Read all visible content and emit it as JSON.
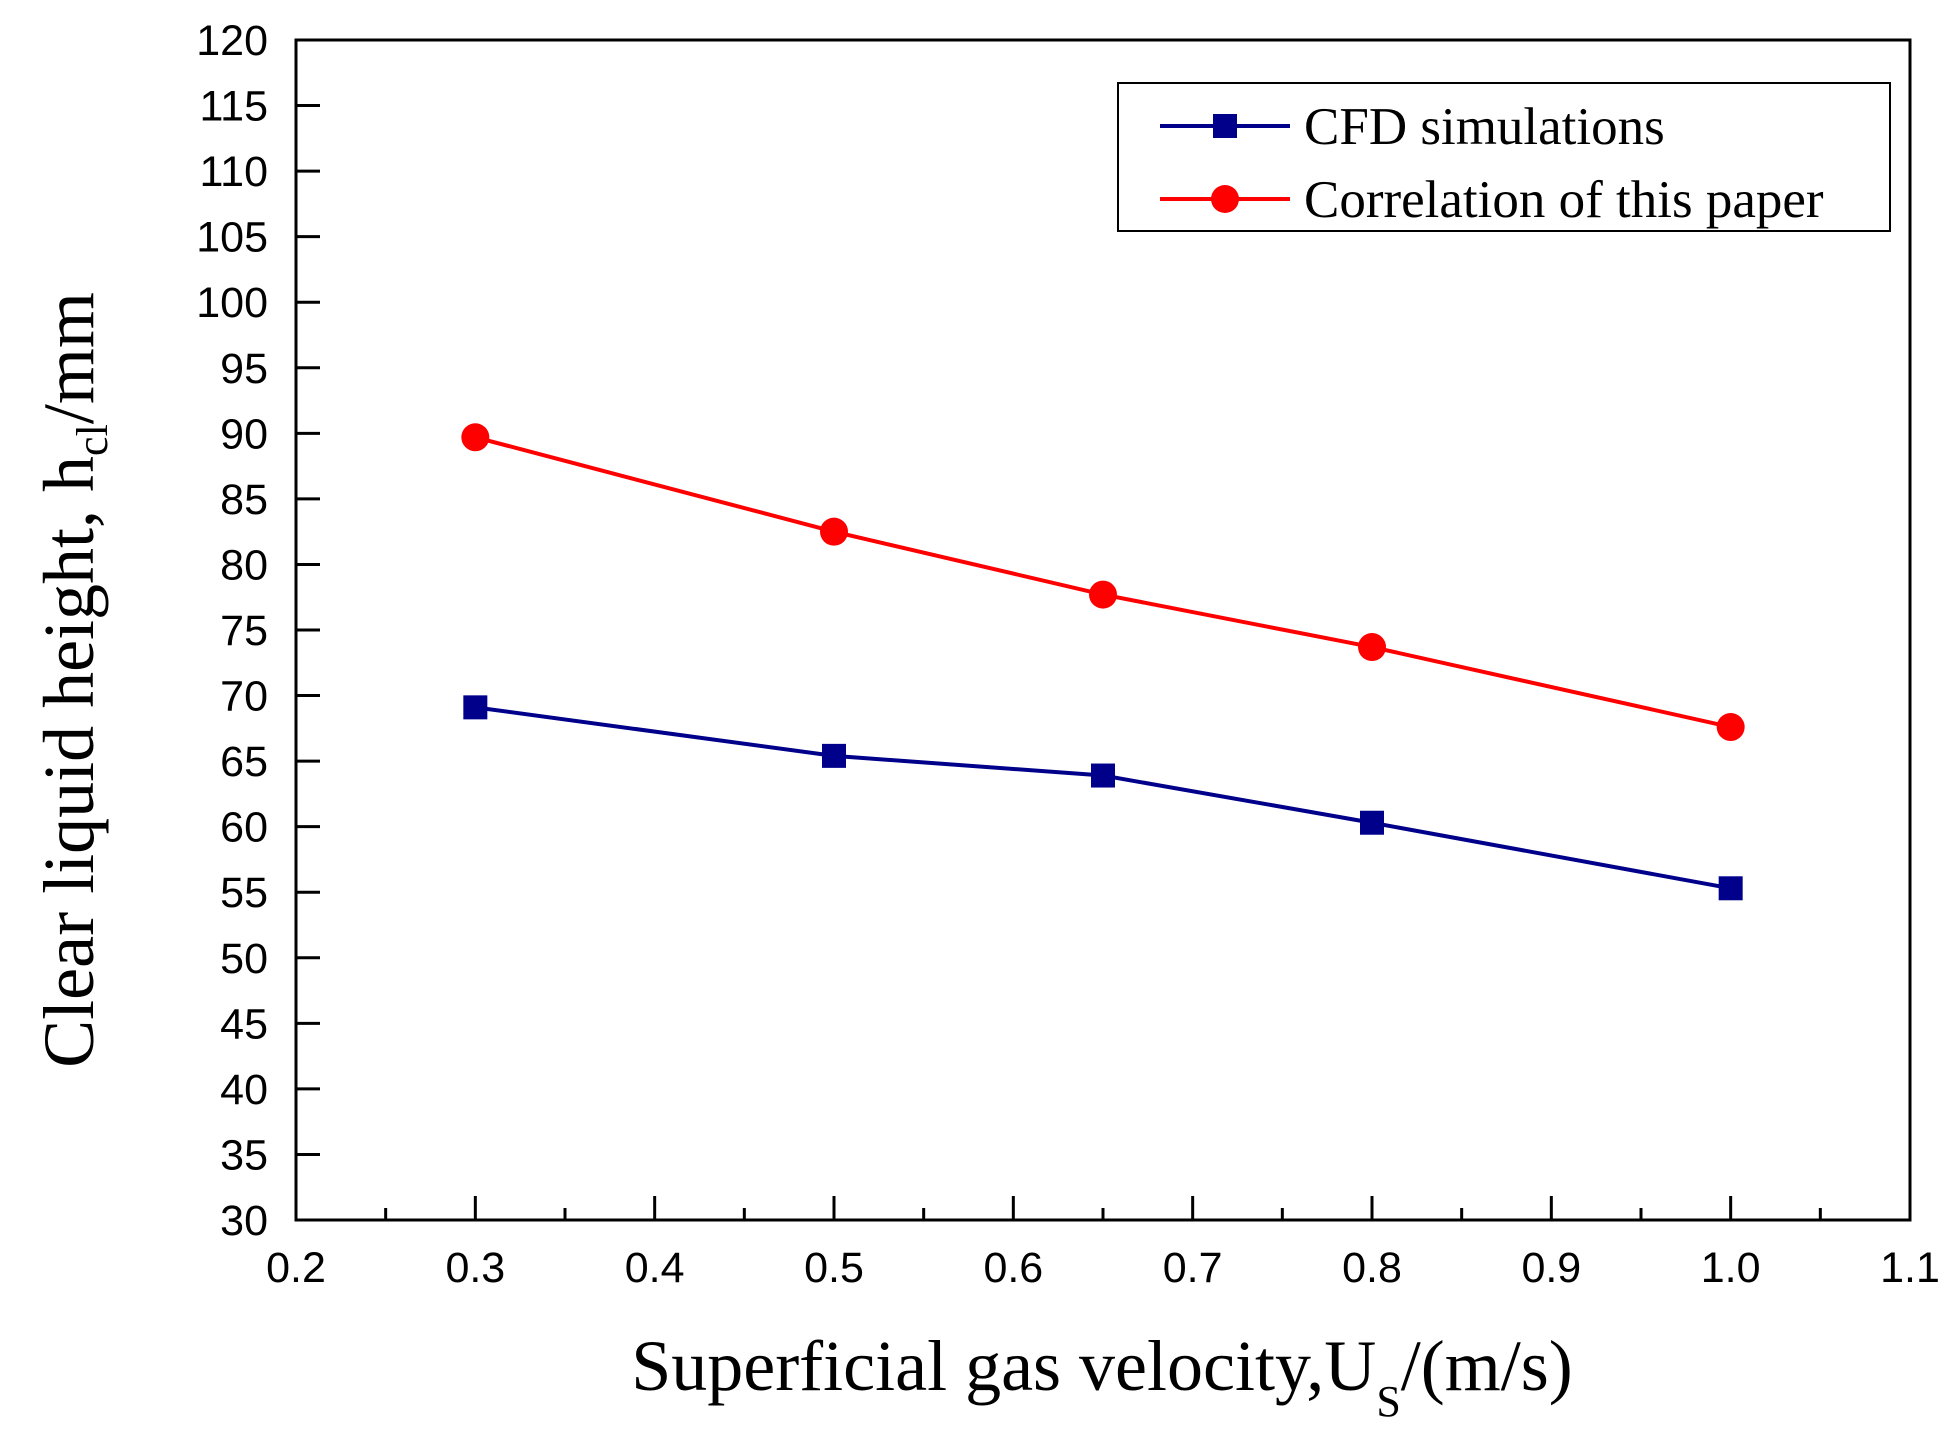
{
  "chart_data": {
    "type": "line",
    "title": "",
    "xlabel": {
      "main": "Superficial gas velocity,U",
      "sub": "S",
      "tail": "/(m/s)"
    },
    "ylabel": {
      "main": "Clear liquid height, h",
      "sub": "cl",
      "tail": "/mm"
    },
    "xlim": [
      0.2,
      1.1
    ],
    "ylim": [
      30,
      120
    ],
    "x_major_ticks": [
      0.2,
      0.3,
      0.4,
      0.5,
      0.6,
      0.7,
      0.8,
      0.9,
      1.0,
      1.1
    ],
    "x_tick_labels": [
      "0.2",
      "0.3",
      "0.4",
      "0.5",
      "0.6",
      "0.7",
      "0.8",
      "0.9",
      "1.0",
      "1.1"
    ],
    "y_major_ticks": [
      30,
      35,
      40,
      45,
      50,
      55,
      60,
      65,
      70,
      75,
      80,
      85,
      90,
      95,
      100,
      105,
      110,
      115,
      120
    ],
    "y_tick_labels": [
      "30",
      "35",
      "40",
      "45",
      "50",
      "55",
      "60",
      "65",
      "70",
      "75",
      "80",
      "85",
      "90",
      "95",
      "100",
      "105",
      "110",
      "115",
      "120"
    ],
    "grid": false,
    "legend_position": "top-right",
    "series": [
      {
        "name": "CFD simulations",
        "color": "#00008B",
        "marker": "square",
        "x": [
          0.3,
          0.5,
          0.65,
          0.8,
          1.0
        ],
        "values": [
          69.1,
          65.4,
          63.9,
          60.3,
          55.3
        ]
      },
      {
        "name": "Correlation of this paper",
        "color": "#FF0000",
        "marker": "circle",
        "x": [
          0.3,
          0.5,
          0.65,
          0.8,
          1.0
        ],
        "values": [
          89.7,
          82.5,
          77.7,
          73.7,
          67.6
        ]
      }
    ]
  }
}
